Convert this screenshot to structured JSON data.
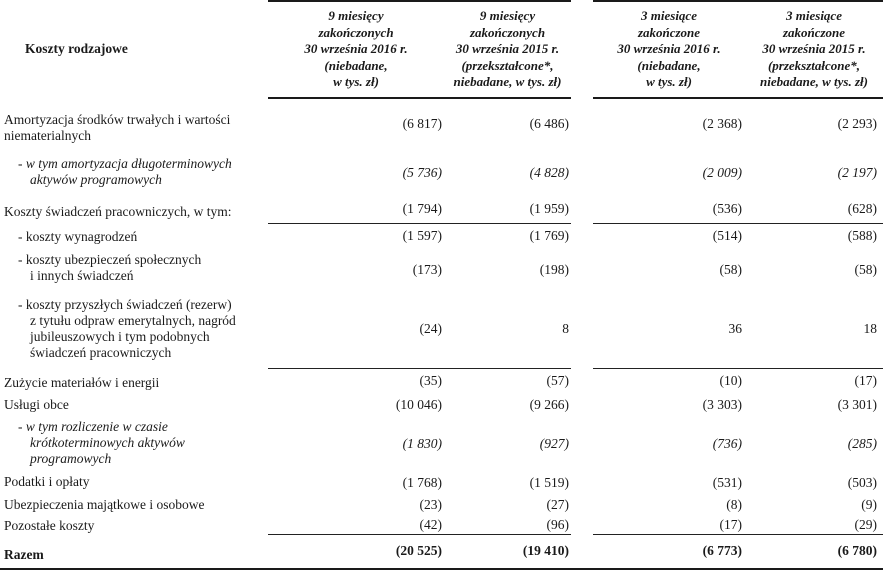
{
  "colors": {
    "text": "#1a1a1a",
    "rule_line": "#222222",
    "background": "#ffffff"
  },
  "table": {
    "corner_label": "Koszty rodzajowe",
    "column_headers": [
      {
        "label": "9 miesięcy\nzakończonych\n30 września 2016 r.\n(niebadane,\nw tys. zł)"
      },
      {
        "label": "9 miesięcy\nzakończonych\n30 września 2015 r.\n(przekształcone*,\nniebadane, w tys. zł)"
      },
      {
        "label": "3 miesiące\nzakończone\n30 września 2016 r.\n(niebadane,\nw tys. zł)"
      },
      {
        "label": "3 miesiące\nzakończone\n30 września 2015 r.\n(przekształcone*,\nniebadane, w tys. zł)"
      }
    ],
    "rows": [
      {
        "label": "Amortyzacja środków trwałych i wartości\nniematerialnych",
        "values": [
          "(6 817)",
          "(6 486)",
          "(2 368)",
          "(2 293)"
        ]
      },
      {
        "label": "- w tym amortyzacja długoterminowych\naktywów programowych",
        "values": [
          "(5 736)",
          "(4 828)",
          "(2 009)",
          "(2 197)"
        ]
      },
      {
        "label": "Koszty świadczeń pracowniczych, w tym:",
        "values": [
          "(1 794)",
          "(1 959)",
          "(536)",
          "(628)"
        ]
      },
      {
        "label": "- koszty wynagrodzeń",
        "values": [
          "(1 597)",
          "(1 769)",
          "(514)",
          "(588)"
        ]
      },
      {
        "label": "- koszty ubezpieczeń społecznych\ni innych świadczeń",
        "values": [
          "(173)",
          "(198)",
          "(58)",
          "(58)"
        ]
      },
      {
        "label": "- koszty przyszłych świadczeń (rezerw)\nz tytułu odpraw emerytalnych, nagród\njubileuszowych i tym podobnych\nświadczeń pracowniczych",
        "values": [
          "(24)",
          "8",
          "36",
          "18"
        ]
      },
      {
        "label": "Zużycie materiałów i energii",
        "values": [
          "(35)",
          "(57)",
          "(10)",
          "(17)"
        ]
      },
      {
        "label": "Usługi obce",
        "values": [
          "(10 046)",
          "(9 266)",
          "(3 303)",
          "(3 301)"
        ]
      },
      {
        "label": "- w tym rozliczenie w czasie\nkrótkoterminowych aktywów\nprogramowych",
        "values": [
          "(1 830)",
          "(927)",
          "(736)",
          "(285)"
        ]
      },
      {
        "label": "Podatki i opłaty",
        "values": [
          "(1 768)",
          "(1 519)",
          "(531)",
          "(503)"
        ]
      },
      {
        "label": "Ubezpieczenia majątkowe i osobowe",
        "values": [
          "(23)",
          "(27)",
          "(8)",
          "(9)"
        ]
      },
      {
        "label": "Pozostałe koszty",
        "values": [
          "(42)",
          "(96)",
          "(17)",
          "(29)"
        ]
      },
      {
        "label": "Razem",
        "values": [
          "(20 525)",
          "(19 410)",
          "(6 773)",
          "(6 780)"
        ]
      }
    ]
  }
}
